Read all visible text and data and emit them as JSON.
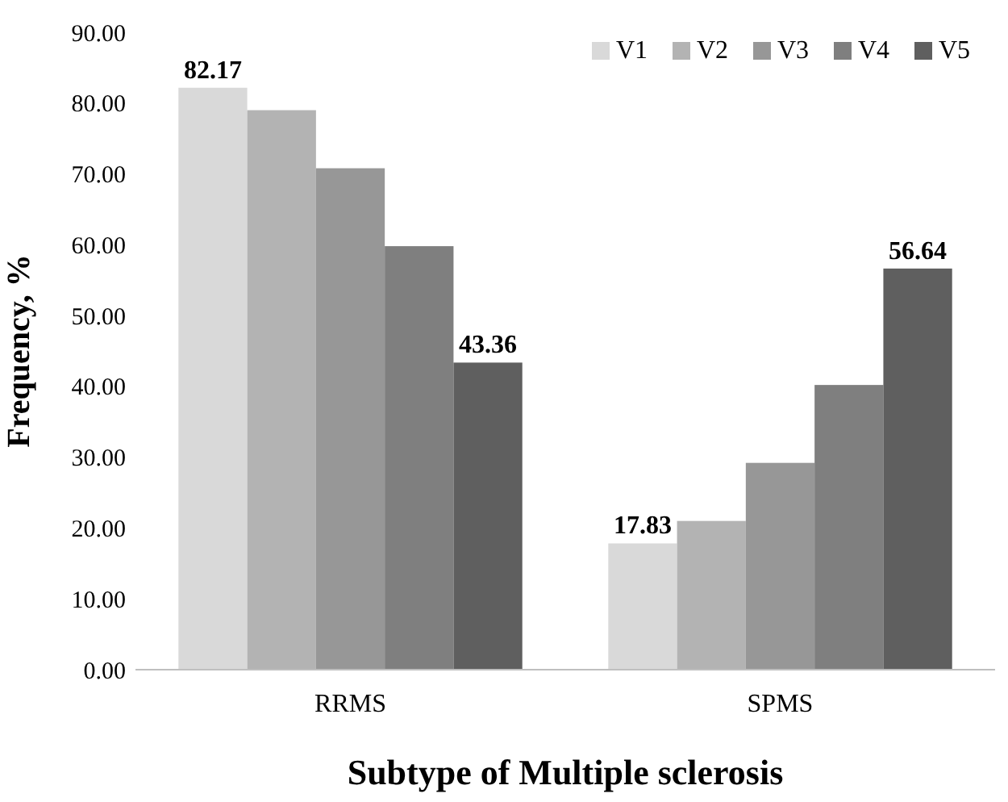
{
  "chart_data": {
    "type": "bar",
    "xlabel": "Subtype of Multiple sclerosis",
    "ylabel": "Frequency, %",
    "categories": [
      "RRMS",
      "SPMS"
    ],
    "series": [
      {
        "name": "V1",
        "color": "#d9d9d9",
        "values": [
          82.17,
          17.83
        ],
        "value_labels": [
          "82.17",
          "17.83"
        ]
      },
      {
        "name": "V2",
        "color": "#b3b3b3",
        "values": [
          79,
          21
        ],
        "value_labels": [
          null,
          null
        ]
      },
      {
        "name": "V3",
        "color": "#979797",
        "values": [
          70.8,
          29.2
        ],
        "value_labels": [
          null,
          null
        ]
      },
      {
        "name": "V4",
        "color": "#7f7f7f",
        "values": [
          59.8,
          40.2
        ],
        "value_labels": [
          null,
          null
        ]
      },
      {
        "name": "V5",
        "color": "#5f5f5f",
        "values": [
          43.36,
          56.64
        ],
        "value_labels": [
          "43.36",
          "56.64"
        ]
      }
    ],
    "ylim": [
      0,
      90
    ],
    "yticks": [
      {
        "value": 0,
        "label": "0.00"
      },
      {
        "value": 10,
        "label": "10.00"
      },
      {
        "value": 20,
        "label": "20.00"
      },
      {
        "value": 30,
        "label": "30.00"
      },
      {
        "value": 40,
        "label": "40.00"
      },
      {
        "value": 50,
        "label": "50.00"
      },
      {
        "value": 60,
        "label": "60.00"
      },
      {
        "value": 70,
        "label": "70.00"
      },
      {
        "value": 80,
        "label": "80.00"
      },
      {
        "value": 90,
        "label": "90.00"
      }
    ],
    "legend": "top right",
    "grid": false
  }
}
